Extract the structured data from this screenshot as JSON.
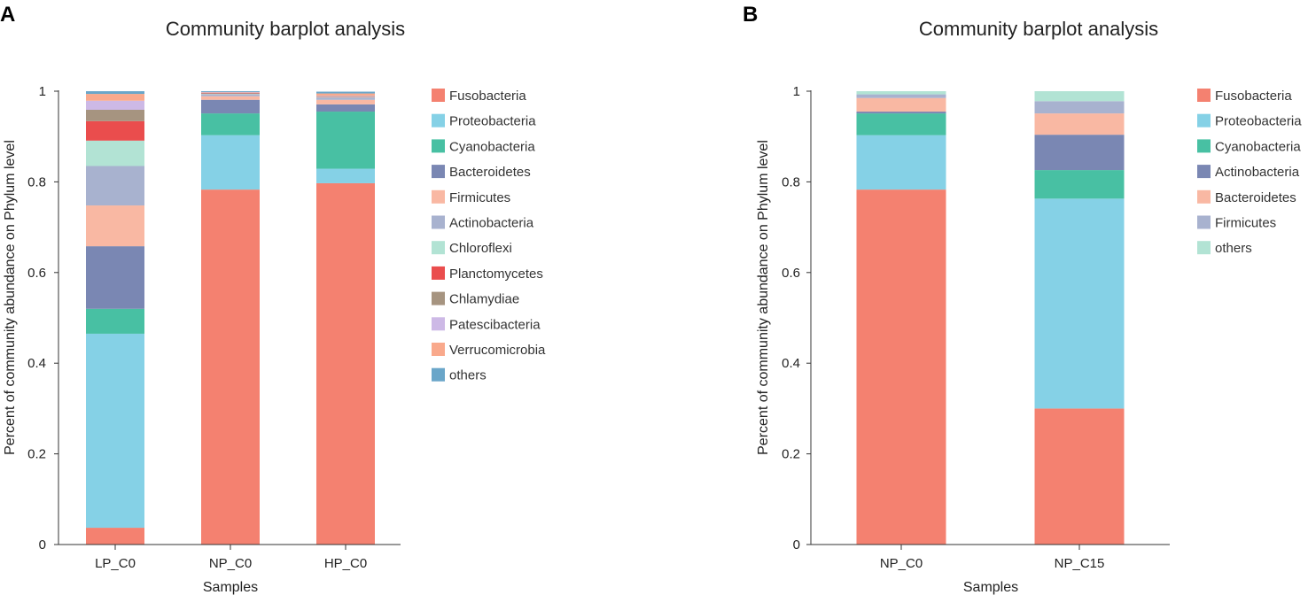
{
  "chart_data": [
    {
      "panel": "A",
      "type": "bar",
      "stacked": true,
      "title": "Community barplot analysis",
      "xlabel": "Samples",
      "ylabel": "Percent of community abundance on Phylum level",
      "ylim": [
        0,
        1
      ],
      "yticks": [
        "0",
        "0.2",
        "0.4",
        "0.6",
        "0.8",
        "1"
      ],
      "categories": [
        "LP_C0",
        "NP_C0",
        "HP_C0"
      ],
      "legend_position": "right",
      "series": [
        {
          "name": "Fusobacteria",
          "color": "#f48170",
          "values": [
            0.037,
            0.783,
            0.797
          ]
        },
        {
          "name": "Proteobacteria",
          "color": "#85d1e6",
          "values": [
            0.428,
            0.12,
            0.032
          ]
        },
        {
          "name": "Cyanobacteria",
          "color": "#48c0a3",
          "values": [
            0.055,
            0.048,
            0.126
          ]
        },
        {
          "name": "Bacteroidetes",
          "color": "#7a87b3",
          "values": [
            0.138,
            0.03,
            0.016
          ]
        },
        {
          "name": "Firmicutes",
          "color": "#f9b8a3",
          "values": [
            0.09,
            0.008,
            0.01
          ]
        },
        {
          "name": "Actinobacteria",
          "color": "#a8b2cf",
          "values": [
            0.087,
            0.004,
            0.005
          ]
        },
        {
          "name": "Chloroflexi",
          "color": "#b2e3d4",
          "values": [
            0.056,
            0.001,
            0.001
          ]
        },
        {
          "name": "Planctomycetes",
          "color": "#ea4d4d",
          "values": [
            0.043,
            0.001,
            0.001
          ]
        },
        {
          "name": "Chlamydiae",
          "color": "#a69480",
          "values": [
            0.025,
            0.001,
            0.001
          ]
        },
        {
          "name": "Patescibacteria",
          "color": "#cdb9e6",
          "values": [
            0.02,
            0.001,
            0.001
          ]
        },
        {
          "name": "Verrucomicrobia",
          "color": "#f9a98c",
          "values": [
            0.015,
            0.001,
            0.005
          ]
        },
        {
          "name": "others",
          "color": "#6aa6c9",
          "values": [
            0.006,
            0.002,
            0.004
          ]
        }
      ]
    },
    {
      "panel": "B",
      "type": "bar",
      "stacked": true,
      "title": "Community barplot analysis",
      "xlabel": "Samples",
      "ylabel": "Percent of community abundance on Phylum level",
      "ylim": [
        0,
        1
      ],
      "yticks": [
        "0",
        "0.2",
        "0.4",
        "0.6",
        "0.8",
        "1"
      ],
      "categories": [
        "NP_C0",
        "NP_C15"
      ],
      "legend_position": "right",
      "series": [
        {
          "name": "Fusobacteria",
          "color": "#f48170",
          "values": [
            0.783,
            0.3
          ]
        },
        {
          "name": "Proteobacteria",
          "color": "#85d1e6",
          "values": [
            0.12,
            0.463
          ]
        },
        {
          "name": "Cyanobacteria",
          "color": "#48c0a3",
          "values": [
            0.048,
            0.063
          ]
        },
        {
          "name": "Actinobacteria",
          "color": "#7a87b3",
          "values": [
            0.004,
            0.078
          ]
        },
        {
          "name": "Bacteroidetes",
          "color": "#f9b8a3",
          "values": [
            0.03,
            0.047
          ]
        },
        {
          "name": "Firmicutes",
          "color": "#a8b2cf",
          "values": [
            0.008,
            0.027
          ]
        },
        {
          "name": "others",
          "color": "#b2e3d4",
          "values": [
            0.007,
            0.022
          ]
        }
      ]
    }
  ]
}
